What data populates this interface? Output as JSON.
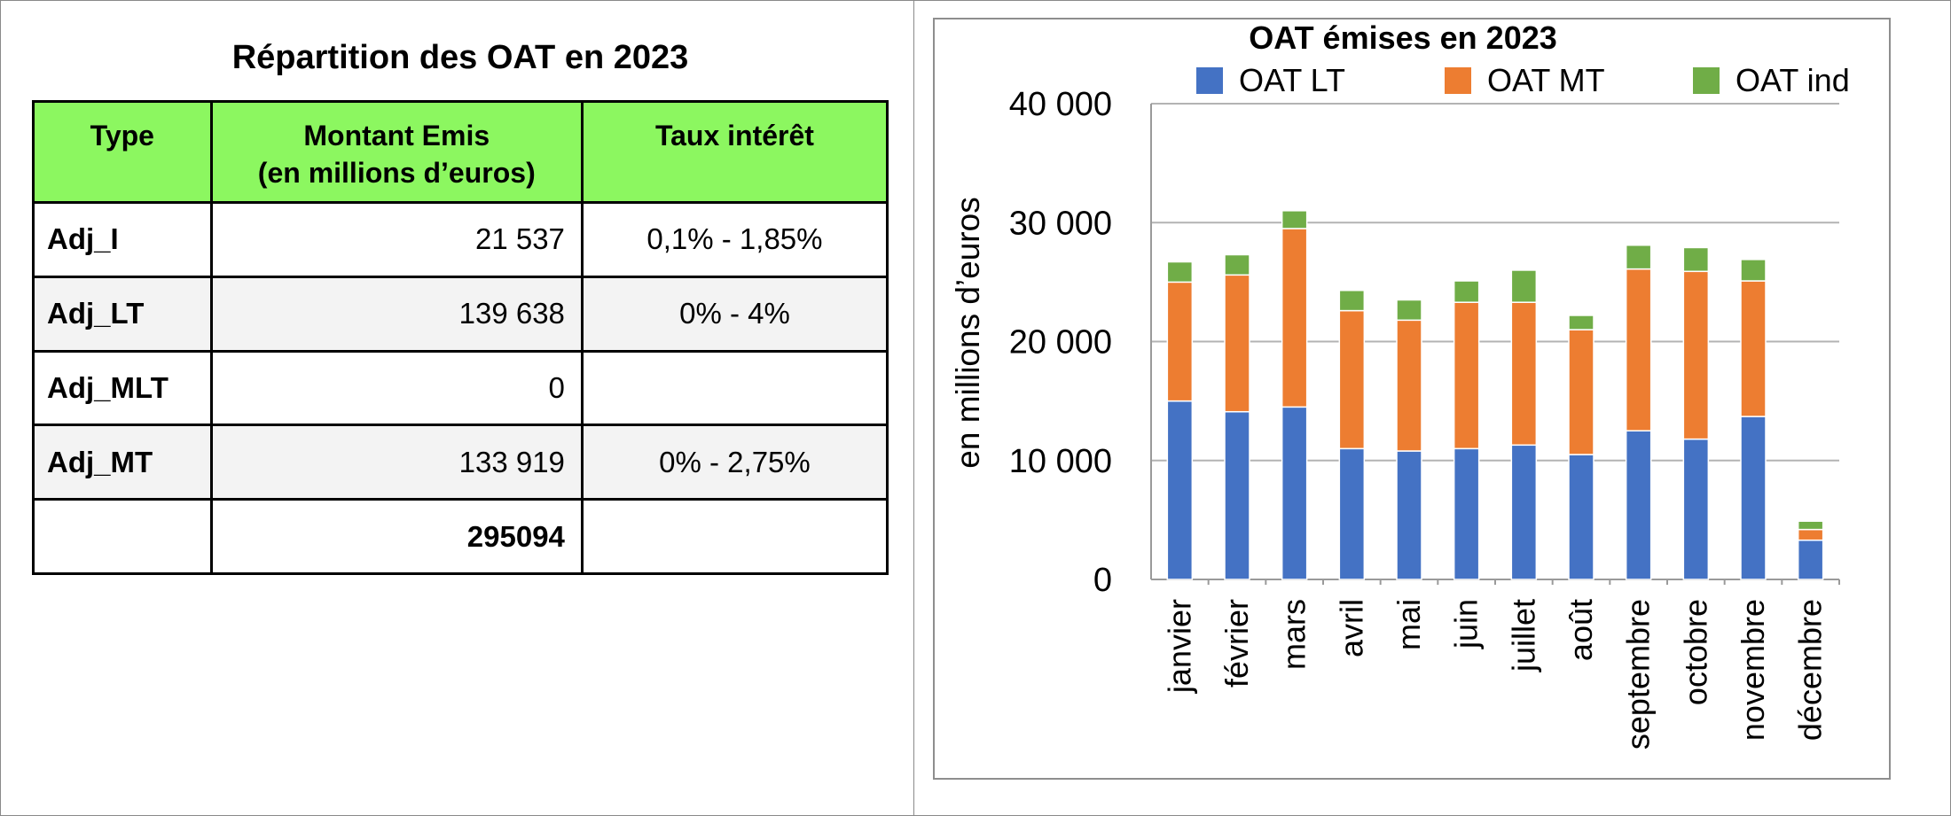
{
  "table": {
    "title": "Répartition des OAT en 2023",
    "headers": [
      "Type",
      "Montant Emis\n(en millions d’euros)",
      "Taux intérêt"
    ],
    "rows": [
      {
        "type": "Adj_I",
        "amount": "21 537",
        "rate": "0,1% - 1,85%"
      },
      {
        "type": "Adj_LT",
        "amount": "139 638",
        "rate": "0% - 4%"
      },
      {
        "type": "Adj_MLT",
        "amount": "0",
        "rate": ""
      },
      {
        "type": "Adj_MT",
        "amount": "133 919",
        "rate": "0% - 2,75%"
      },
      {
        "type": "",
        "amount": "295094",
        "rate": ""
      }
    ],
    "header_color": "#8cf760"
  },
  "chart_data": {
    "type": "bar",
    "stacked": true,
    "title": "OAT émises en 2023",
    "xlabel": "",
    "ylabel": "en millions d’euros",
    "ylim": [
      0,
      40000
    ],
    "yticks": [
      0,
      10000,
      20000,
      30000,
      40000
    ],
    "ytick_labels": [
      "0",
      "10 000",
      "20 000",
      "30 000",
      "40 000"
    ],
    "grid": true,
    "legend_position": "top",
    "categories": [
      "janvier",
      "février",
      "mars",
      "avril",
      "mai",
      "juin",
      "juillet",
      "août",
      "septembre",
      "octobre",
      "novembre",
      "décembre"
    ],
    "series": [
      {
        "name": "OAT LT",
        "color": "#4472c4",
        "values": [
          15000,
          14100,
          14500,
          11000,
          10800,
          11000,
          11300,
          10500,
          12500,
          11800,
          13700,
          3300
        ]
      },
      {
        "name": "OAT MT",
        "color": "#ed7d31",
        "values": [
          10000,
          11500,
          15000,
          11600,
          11000,
          12300,
          12000,
          10500,
          13600,
          14100,
          11400,
          900
        ]
      },
      {
        "name": "OAT ind",
        "color": "#70ad47",
        "values": [
          1700,
          1700,
          1500,
          1700,
          1700,
          1800,
          2700,
          1200,
          2000,
          2000,
          1800,
          700
        ]
      }
    ]
  }
}
